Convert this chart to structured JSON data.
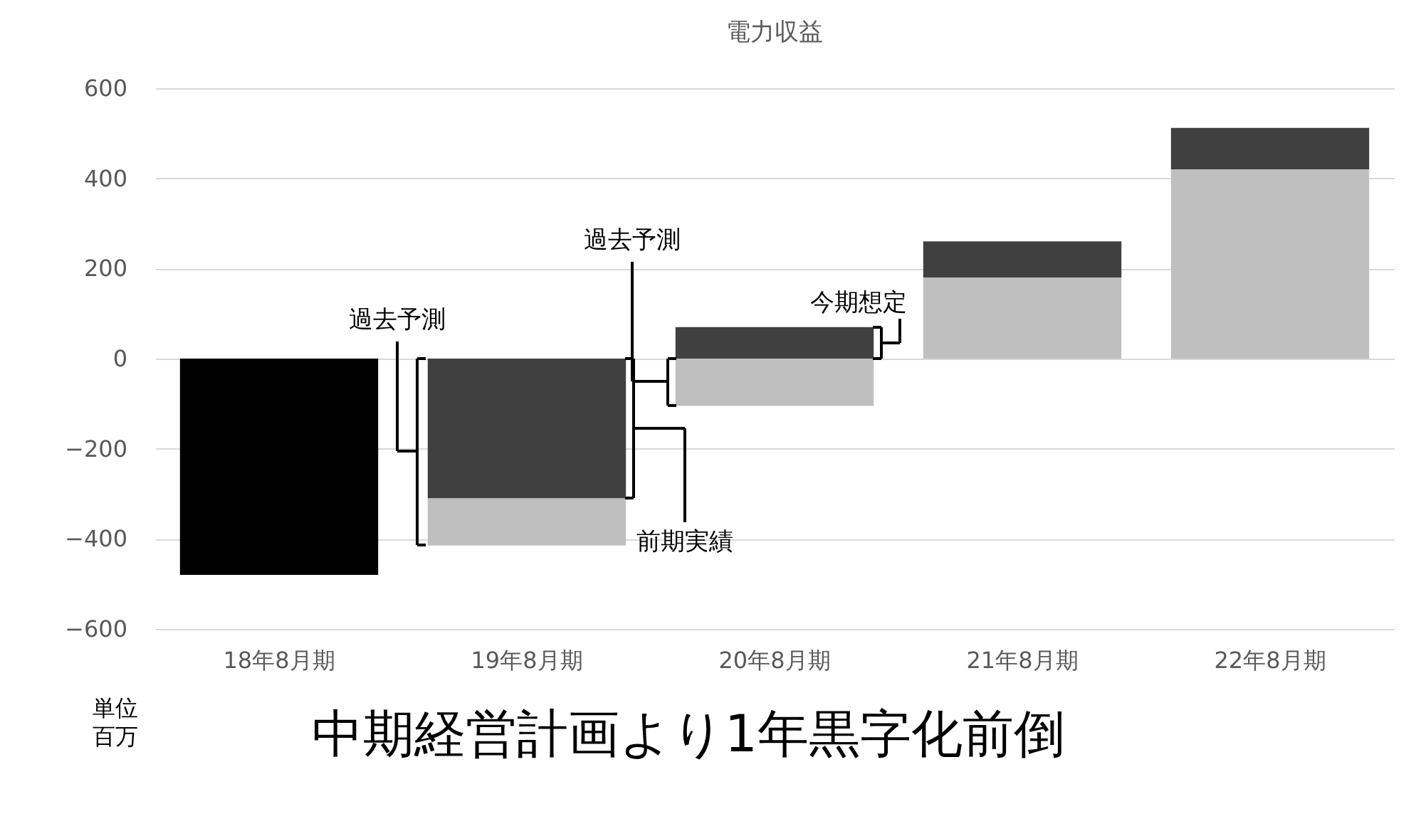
{
  "chart_data": {
    "type": "bar",
    "title": "電力収益",
    "ylabel": "単位百万",
    "categories": [
      "18年8月期",
      "19年8月期",
      "20年8月期",
      "21年8月期",
      "22年8月期"
    ],
    "series": [
      {
        "color": "#000000",
        "values": [
          -480,
          null,
          null,
          null,
          null
        ],
        "base": [
          0,
          null,
          null,
          null,
          null
        ]
      },
      {
        "color": "#bfbfbf",
        "values": [
          null,
          -105,
          -105,
          180,
          420
        ],
        "base": [
          null,
          -310,
          0,
          0,
          0
        ]
      },
      {
        "color": "#404040",
        "values": [
          null,
          -310,
          70,
          80,
          92
        ],
        "base": [
          null,
          0,
          0,
          180,
          420
        ]
      }
    ],
    "ylim": [
      -600,
      600
    ],
    "yticks": [
      -600,
      -400,
      -200,
      0,
      200,
      400,
      600
    ],
    "grid": "y",
    "legend": false,
    "annotations": [
      "過去予測",
      "前期実績",
      "過去予測",
      "今期想定",
      "中期経営計画より1年黒字化前倒"
    ]
  }
}
